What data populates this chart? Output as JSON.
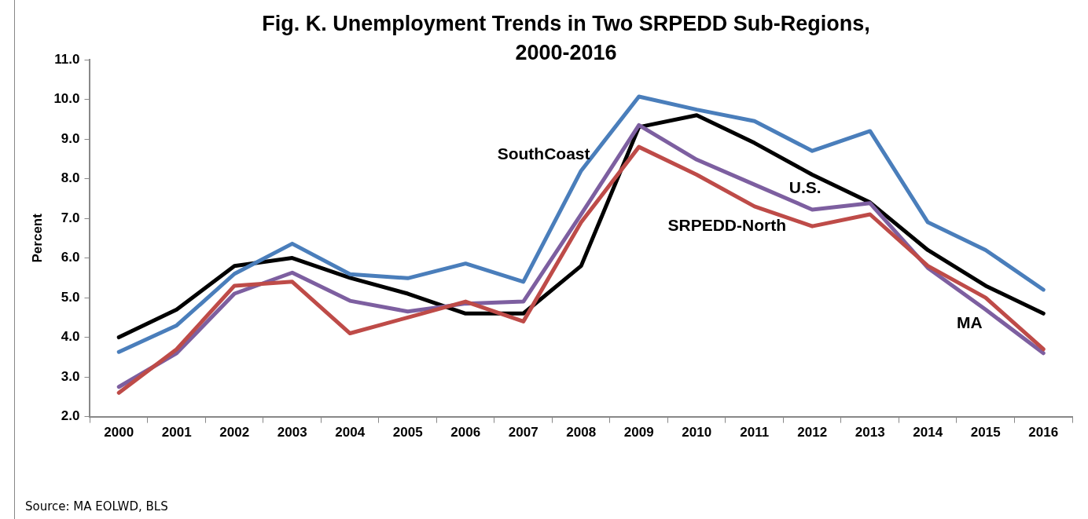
{
  "chart_data": {
    "type": "line",
    "title": "Fig. K. Unemployment Trends in Two SRPEDD Sub-Regions, 2000-2016",
    "ylabel": "Percent",
    "categories": [
      "2000",
      "2001",
      "2002",
      "2003",
      "2004",
      "2005",
      "2006",
      "2007",
      "2008",
      "2009",
      "2010",
      "2011",
      "2012",
      "2013",
      "2014",
      "2015",
      "2016"
    ],
    "series": [
      {
        "name": "SouthCoast",
        "color": "#4a7ebb",
        "values": [
          3.63,
          4.3,
          5.6,
          6.36,
          5.59,
          5.49,
          5.86,
          5.4,
          8.2,
          10.07,
          9.74,
          9.45,
          8.7,
          9.2,
          6.9,
          6.2,
          5.2
        ]
      },
      {
        "name": "SRPEDD-North",
        "color": "#be4b48",
        "values": [
          2.6,
          3.7,
          5.3,
          5.4,
          4.1,
          4.5,
          4.9,
          4.4,
          6.9,
          8.8,
          8.1,
          7.3,
          6.8,
          7.1,
          5.8,
          5.0,
          3.7
        ]
      },
      {
        "name": "MA",
        "color": "#7d5fa0",
        "values": [
          2.75,
          3.6,
          5.1,
          5.63,
          4.92,
          4.65,
          4.85,
          4.9,
          7.1,
          9.35,
          8.48,
          7.85,
          7.22,
          7.38,
          5.75,
          4.7,
          3.6
        ]
      },
      {
        "name": "U.S.",
        "color": "#000000",
        "values": [
          4.0,
          4.7,
          5.8,
          6.0,
          5.5,
          5.1,
          4.6,
          4.6,
          5.8,
          9.3,
          9.6,
          8.9,
          8.1,
          7.4,
          6.2,
          5.3,
          4.6
        ]
      }
    ],
    "ylim": [
      2,
      11
    ],
    "yticks": [
      {
        "value": 2,
        "label": "2.0"
      },
      {
        "value": 3,
        "label": "3.0"
      },
      {
        "value": 4,
        "label": "4.0"
      },
      {
        "value": 5,
        "label": "5.0"
      },
      {
        "value": 6,
        "label": "6.0"
      },
      {
        "value": 7,
        "label": "7.0"
      },
      {
        "value": 8,
        "label": "8.0"
      },
      {
        "value": 9,
        "label": "9.0"
      },
      {
        "value": 10,
        "label": "10.0"
      },
      {
        "value": 11,
        "label": "11.0"
      }
    ],
    "grid": false,
    "legend": false,
    "marker": "none",
    "line_style": "solid",
    "annotations": [
      "Source: MA EOLWD, BLS"
    ]
  }
}
